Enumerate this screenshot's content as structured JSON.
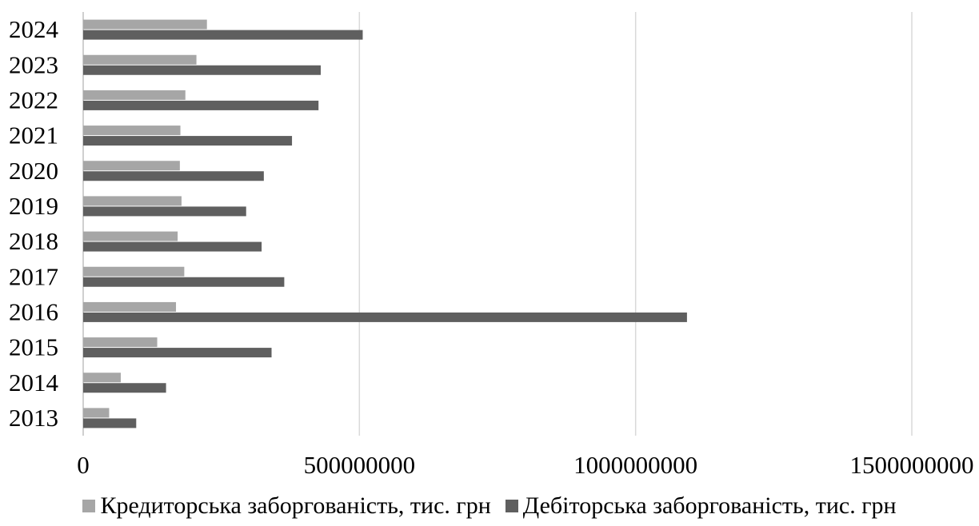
{
  "chart_data": {
    "type": "bar",
    "orientation": "horizontal",
    "title": "",
    "xlabel": "",
    "ylabel": "",
    "categories": [
      "2013",
      "2014",
      "2015",
      "2016",
      "2017",
      "2018",
      "2019",
      "2020",
      "2021",
      "2022",
      "2023",
      "2024"
    ],
    "series": [
      {
        "name": "Кредиторська заборгованість, тис. грн",
        "color": "#a6a6a6",
        "values": [
          47000000,
          68000000,
          134000000,
          168000000,
          183000000,
          171000000,
          178000000,
          175000000,
          176000000,
          185000000,
          205000000,
          224000000
        ]
      },
      {
        "name": "Дебіторська заборгованість, тис. грн",
        "color": "#5f5f5f",
        "values": [
          96000000,
          150000000,
          341000000,
          1093000000,
          364000000,
          323000000,
          295000000,
          327000000,
          378000000,
          426000000,
          430000000,
          506000000
        ]
      }
    ],
    "xlim": [
      0,
      1500000000
    ],
    "xticks": [
      "0",
      "500000000",
      "1000000000",
      "1500000000"
    ],
    "grid": "vertical",
    "legend_position": "bottom"
  }
}
